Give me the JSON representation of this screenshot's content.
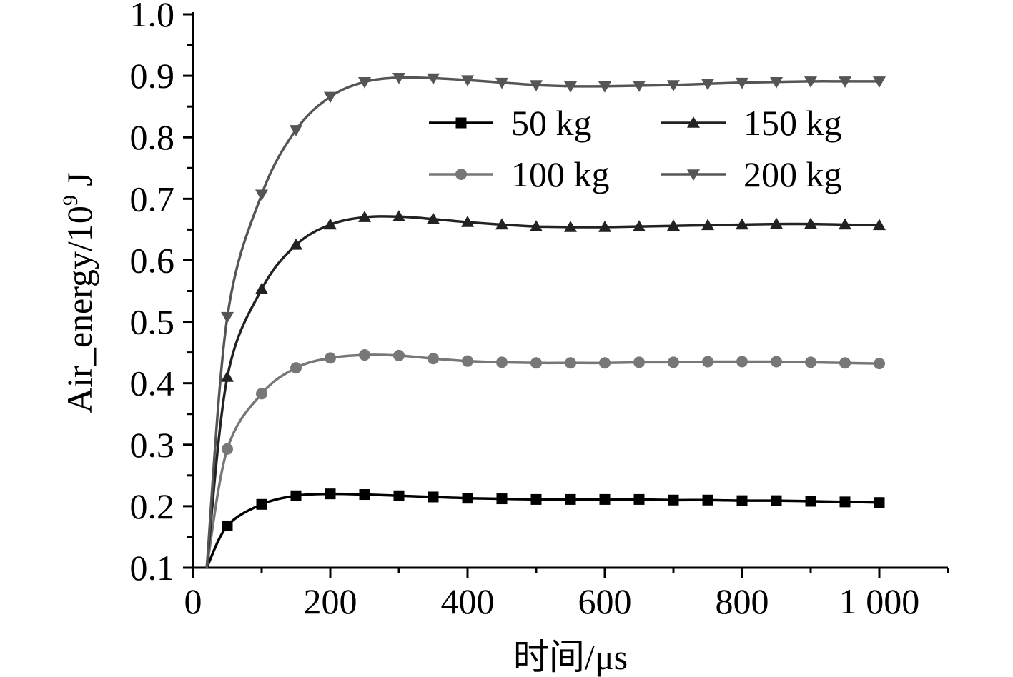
{
  "chart_data": {
    "type": "line",
    "title": "",
    "xlabel": "时间/μs",
    "ylabel_main": "Air_energy/10",
    "ylabel_sup": "9",
    "ylabel_unit": " J",
    "xlim": [
      0,
      1100
    ],
    "ylim": [
      0.1,
      1.0
    ],
    "x_ticks": [
      0,
      200,
      400,
      600,
      800,
      1000
    ],
    "x_tick_labels": [
      "0",
      "200",
      "400",
      "600",
      "800",
      "1 000"
    ],
    "y_ticks": [
      0.1,
      0.2,
      0.3,
      0.4,
      0.5,
      0.6,
      0.7,
      0.8,
      0.9,
      1.0
    ],
    "y_tick_labels": [
      "0.1",
      "0.2",
      "0.3",
      "0.4",
      "0.5",
      "0.6",
      "0.7",
      "0.8",
      "0.9",
      "1.0"
    ],
    "grid": false,
    "legend_position": "top-right",
    "series": [
      {
        "name": "50 kg",
        "marker": "square",
        "color": "#000000",
        "x": [
          20,
          50,
          100,
          150,
          200,
          250,
          300,
          350,
          400,
          450,
          500,
          550,
          600,
          650,
          700,
          750,
          800,
          850,
          900,
          950,
          1000
        ],
        "y": [
          0.1,
          0.168,
          0.203,
          0.217,
          0.22,
          0.219,
          0.217,
          0.215,
          0.213,
          0.212,
          0.211,
          0.211,
          0.211,
          0.211,
          0.21,
          0.21,
          0.209,
          0.209,
          0.208,
          0.207,
          0.206
        ]
      },
      {
        "name": "100 kg",
        "marker": "circle",
        "color": "#777777",
        "x": [
          20,
          50,
          100,
          150,
          200,
          250,
          300,
          350,
          400,
          450,
          500,
          550,
          600,
          650,
          700,
          750,
          800,
          850,
          900,
          950,
          1000
        ],
        "y": [
          0.1,
          0.293,
          0.383,
          0.425,
          0.441,
          0.446,
          0.445,
          0.44,
          0.436,
          0.434,
          0.433,
          0.433,
          0.433,
          0.434,
          0.434,
          0.435,
          0.435,
          0.435,
          0.434,
          0.433,
          0.432
        ]
      },
      {
        "name": "150 kg",
        "marker": "triangle-up",
        "color": "#222222",
        "x": [
          20,
          50,
          100,
          150,
          200,
          250,
          300,
          350,
          400,
          450,
          500,
          550,
          600,
          650,
          700,
          750,
          800,
          850,
          900,
          950,
          1000
        ],
        "y": [
          0.1,
          0.41,
          0.553,
          0.625,
          0.658,
          0.67,
          0.671,
          0.667,
          0.662,
          0.658,
          0.655,
          0.654,
          0.654,
          0.655,
          0.656,
          0.657,
          0.658,
          0.659,
          0.659,
          0.658,
          0.657
        ]
      },
      {
        "name": "200 kg",
        "marker": "triangle-down",
        "color": "#555555",
        "x": [
          20,
          50,
          100,
          150,
          200,
          250,
          300,
          350,
          400,
          450,
          500,
          550,
          600,
          650,
          700,
          750,
          800,
          850,
          900,
          950,
          1000
        ],
        "y": [
          0.1,
          0.508,
          0.707,
          0.812,
          0.866,
          0.89,
          0.897,
          0.896,
          0.893,
          0.889,
          0.885,
          0.883,
          0.883,
          0.884,
          0.885,
          0.887,
          0.889,
          0.89,
          0.891,
          0.891,
          0.891
        ]
      }
    ]
  }
}
